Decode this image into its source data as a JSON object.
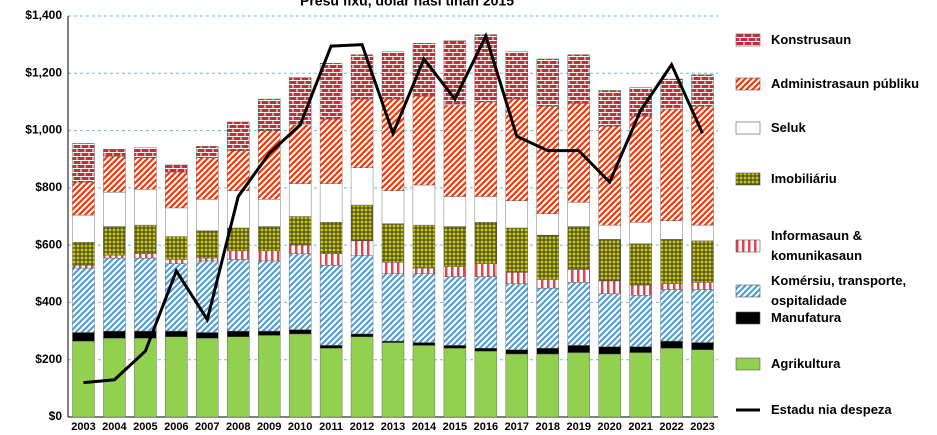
{
  "chart_data": {
    "type": "bar",
    "stacked": true,
    "title": "Presu fixu, dolar nasi tinan 2015",
    "categories": [
      "2003",
      "2004",
      "2005",
      "2006",
      "2007",
      "2008",
      "2009",
      "2010",
      "2011",
      "2012",
      "2013",
      "2014",
      "2015",
      "2016",
      "2017",
      "2018",
      "2019",
      "2020",
      "2021",
      "2022",
      "2023"
    ],
    "series": [
      {
        "name": "Agrikultura",
        "color": "#92d050",
        "pattern": "solid",
        "values": [
          265,
          275,
          275,
          280,
          275,
          280,
          285,
          290,
          240,
          280,
          260,
          250,
          240,
          230,
          220,
          220,
          225,
          220,
          225,
          240,
          235
        ]
      },
      {
        "name": "Manufatura",
        "color": "#000000",
        "pattern": "solid",
        "values": [
          30,
          25,
          25,
          20,
          20,
          20,
          15,
          15,
          10,
          10,
          5,
          10,
          10,
          10,
          15,
          20,
          25,
          25,
          20,
          25,
          25
        ]
      },
      {
        "name": "Komérsiu, transporte, ospitalidade",
        "color": "#4f9fd8",
        "pattern": "diagonal",
        "values": [
          225,
          255,
          255,
          235,
          250,
          250,
          245,
          265,
          280,
          275,
          235,
          240,
          240,
          250,
          230,
          210,
          220,
          185,
          180,
          180,
          185
        ]
      },
      {
        "name": "Informasaun & komunikasaun",
        "color": "#e8414b",
        "pattern": "vertical",
        "values": [
          10,
          10,
          15,
          15,
          10,
          30,
          35,
          30,
          40,
          50,
          40,
          20,
          35,
          45,
          40,
          30,
          45,
          45,
          35,
          20,
          25
        ]
      },
      {
        "name": "Imobiliáriu",
        "color": "#c8c800",
        "pattern": "dots",
        "values": [
          80,
          100,
          100,
          80,
          95,
          80,
          85,
          100,
          110,
          125,
          135,
          150,
          140,
          145,
          155,
          155,
          150,
          145,
          145,
          155,
          145
        ]
      },
      {
        "name": "Seluk",
        "color": "#ffffff",
        "pattern": "solid",
        "values": [
          95,
          120,
          125,
          100,
          110,
          130,
          95,
          115,
          135,
          130,
          115,
          140,
          105,
          90,
          95,
          75,
          85,
          50,
          75,
          65,
          55
        ]
      },
      {
        "name": "Administrasaun públiku",
        "color": "#ff3300",
        "pattern": "diagonal",
        "values": [
          115,
          125,
          110,
          125,
          145,
          140,
          240,
          205,
          225,
          240,
          320,
          310,
          320,
          330,
          355,
          375,
          345,
          345,
          370,
          390,
          415
        ]
      },
      {
        "name": "Konstrusaun",
        "color": "#c0303a",
        "pattern": "brick",
        "values": [
          135,
          25,
          35,
          25,
          40,
          100,
          110,
          165,
          195,
          155,
          165,
          185,
          225,
          235,
          165,
          165,
          170,
          125,
          100,
          105,
          110
        ]
      }
    ],
    "line": {
      "name": "Estadu nia despeza",
      "color": "#000000",
      "values": [
        120,
        130,
        230,
        510,
        340,
        770,
        920,
        1020,
        1295,
        1300,
        990,
        1250,
        1110,
        1330,
        980,
        930,
        930,
        820,
        1070,
        1230,
        990
      ]
    },
    "ylim": [
      0,
      1400
    ],
    "yticks": [
      {
        "value": 0,
        "label": "$0"
      },
      {
        "value": 200,
        "label": "$200"
      },
      {
        "value": 400,
        "label": "$400"
      },
      {
        "value": 600,
        "label": "$600"
      },
      {
        "value": 800,
        "label": "$800"
      },
      {
        "value": 1000,
        "label": "$1,000"
      },
      {
        "value": 1200,
        "label": "$1,200"
      },
      {
        "value": 1400,
        "label": "$1,400"
      }
    ],
    "grid": true,
    "legend": "right"
  }
}
